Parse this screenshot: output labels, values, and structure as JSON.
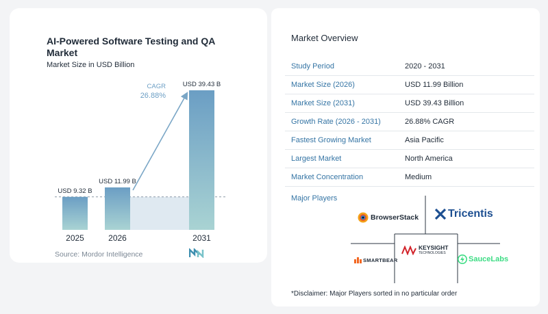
{
  "chart_data": {
    "type": "bar",
    "title": "AI-Powered Software Testing and QA Market",
    "subtitle": "Market Size in USD Billion",
    "categories": [
      "2025",
      "2026",
      "2031"
    ],
    "values": [
      9.32,
      11.99,
      39.43
    ],
    "value_labels": [
      "USD 9.32 B",
      "USD 11.99 B",
      "USD 39.43 B"
    ],
    "cagr_label": "CAGR",
    "cagr_value": "26.88%",
    "colors": {
      "bar_top": "#6b9ec4",
      "bar_bottom": "#a9d3d3",
      "band": "#dfe9f1",
      "arrow": "#7aa6c6",
      "cagr_text": "#6b9ec4"
    }
  },
  "source": "Source:  Mordor Intelligence",
  "overview": {
    "title": "Market Overview",
    "rows": [
      {
        "key": "Study Period",
        "value": "2020 - 2031"
      },
      {
        "key": "Market Size (2026)",
        "value": "USD 11.99 Billion"
      },
      {
        "key": "Market Size (2031)",
        "value": "USD 39.43 Billion"
      },
      {
        "key": "Growth Rate (2026 - 2031)",
        "value": "26.88% CAGR"
      },
      {
        "key": "Fastest Growing Market",
        "value": "Asia Pacific"
      },
      {
        "key": "Largest Market",
        "value": "North America"
      },
      {
        "key": "Market Concentration",
        "value": "Medium"
      }
    ]
  },
  "players": {
    "title": "Major Players",
    "logos": [
      {
        "name": "BrowserStack",
        "color": "#1f2a37",
        "icon": "browserstack-eye-icon"
      },
      {
        "name": "Tricentis",
        "color": "#1d4f91",
        "icon": "tricentis-cross-icon"
      },
      {
        "name": "KEYSIGHT",
        "sub": "TECHNOLOGIES",
        "color": "#1f2a37",
        "accent": "#d2232a",
        "icon": "keysight-wave-icon"
      },
      {
        "name": "SMARTBEAR",
        "color": "#1f2a37",
        "accent": "#f26722",
        "icon": "smartbear-bars-icon"
      },
      {
        "name": "SauceLabs",
        "color": "#3ddc84",
        "icon": "saucelabs-bolt-icon"
      }
    ]
  },
  "disclaimer": "*Disclaimer: Major Players sorted in no particular order"
}
